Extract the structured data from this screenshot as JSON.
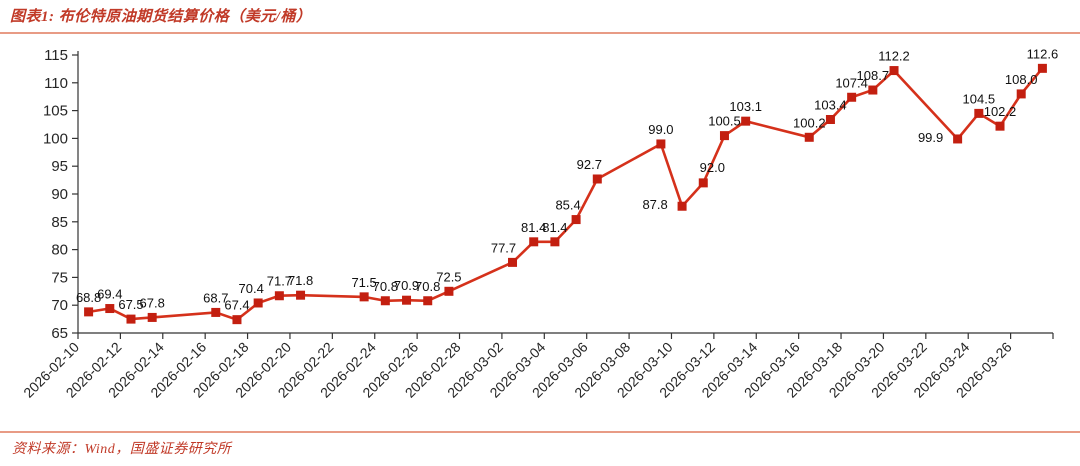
{
  "header": {
    "title": "图表1: 布伦特原油期货结算价格（美元/桶）"
  },
  "footer": {
    "source": "资料来源：Wind，国盛证券研究所"
  },
  "colors": {
    "line": "#D5311B",
    "marker": "#C31F10",
    "title": "#C13A28",
    "separator": "#E89B85",
    "axis": "#333333",
    "point_label": "#111111"
  },
  "chart_data": {
    "type": "line",
    "title": "布伦特原油期货结算价格（美元/桶）",
    "series_name": "布伦特原油期货结算价",
    "marker": "square",
    "grid": false,
    "legend": false,
    "x": [
      "2026-02-10",
      "2026-02-11",
      "2026-02-12",
      "2026-02-13",
      "2026-02-16",
      "2026-02-17",
      "2026-02-18",
      "2026-02-19",
      "2026-02-20",
      "2026-02-23",
      "2026-02-24",
      "2026-02-25",
      "2026-02-26",
      "2026-02-27",
      "2026-03-02",
      "2026-03-03",
      "2026-03-04",
      "2026-03-05",
      "2026-03-06",
      "2026-03-09",
      "2026-03-10",
      "2026-03-11",
      "2026-03-12",
      "2026-03-13",
      "2026-03-16",
      "2026-03-17",
      "2026-03-18",
      "2026-03-19",
      "2026-03-20",
      "2026-03-23",
      "2026-03-24",
      "2026-03-25",
      "2026-03-26",
      "2026-03-27"
    ],
    "values": [
      68.8,
      69.4,
      67.5,
      67.8,
      68.7,
      67.4,
      70.4,
      71.7,
      71.8,
      71.5,
      70.8,
      70.9,
      70.8,
      72.5,
      77.7,
      81.4,
      81.4,
      85.4,
      92.7,
      99.0,
      87.8,
      92.0,
      100.5,
      103.1,
      100.2,
      103.4,
      107.4,
      108.7,
      112.2,
      99.9,
      104.5,
      102.2,
      108.0,
      112.6
    ],
    "x_axis": {
      "start": "2026-02-10",
      "span_days": 46,
      "tick_step_days": 2,
      "tick_labels": [
        "2026-02-10",
        "2026-02-12",
        "2026-02-14",
        "2026-02-16",
        "2026-02-18",
        "2026-02-20",
        "2026-02-22",
        "2026-02-24",
        "2026-02-26",
        "2026-02-28",
        "2026-03-02",
        "2026-03-04",
        "2026-03-06",
        "2026-03-08",
        "2026-03-10",
        "2026-03-12",
        "2026-03-14",
        "2026-03-16",
        "2026-03-18",
        "2026-03-20",
        "2026-03-22",
        "2026-03-24",
        "2026-03-26"
      ]
    },
    "y_axis": {
      "min": 65,
      "max": 115,
      "step": 5,
      "ticks": [
        65,
        70,
        75,
        80,
        85,
        90,
        95,
        100,
        105,
        110,
        115
      ]
    },
    "label_format": "0.1f",
    "label_offsets": {
      "6": [
        -7,
        0
      ],
      "14": [
        -9,
        0
      ],
      "17": [
        -8,
        0
      ],
      "18": [
        -8,
        0
      ],
      "20": [
        -27,
        13
      ],
      "21": [
        9,
        -1
      ],
      "29": [
        -27,
        13
      ]
    }
  }
}
